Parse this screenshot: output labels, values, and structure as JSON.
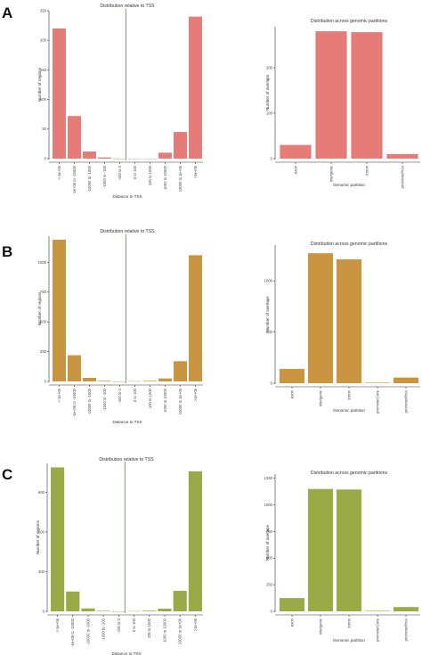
{
  "panels": [
    {
      "letter": "A",
      "color": "#E57C78",
      "tss": {
        "title": "Distribution relative to TSS",
        "xlabel": "Distance to TSS",
        "ylabel": "Number of regions",
        "yticks": [
          0,
          50,
          100,
          150,
          200,
          250
        ],
        "ylim": [
          0,
          250
        ],
        "categories": [
          "<-1e+06",
          "-1e+06 to -10000",
          "-10000 to -1000",
          "-1000 to -100",
          "-100 to 0",
          "0 to 100",
          "100 to 1000",
          "1000 to 10000",
          "10000 to 1e+06",
          ">1e+06"
        ],
        "values": [
          220,
          72,
          12,
          2,
          0,
          0,
          0,
          10,
          45,
          240
        ]
      },
      "partition": {
        "title": "Distribution across genomic partitions",
        "xlabel": "Genomic partition",
        "ylabel": "Number of overlaps",
        "yticks": [
          0,
          100,
          200
        ],
        "ylim": [
          0,
          290
        ],
        "categories": [
          "exon",
          "intergenic",
          "intron",
          "promoterProx"
        ],
        "values": [
          30,
          280,
          278,
          10
        ]
      }
    },
    {
      "letter": "B",
      "color": "#C99540",
      "tss": {
        "title": "Distribution relative to TSS",
        "xlabel": "Distance to TSS",
        "ylabel": "Number of regions",
        "yticks": [
          0,
          250,
          500,
          750,
          1000
        ],
        "ylim": [
          0,
          1220
        ],
        "categories": [
          "<-1e+06",
          "-1e+06 to -10000",
          "-10000 to -1000",
          "-1000 to -100",
          "-100 to 0",
          "0 to 100",
          "100 to 1000",
          "1000 to 10000",
          "10000 to 1e+06",
          ">1e+06"
        ],
        "values": [
          1190,
          220,
          30,
          5,
          0,
          2,
          5,
          25,
          170,
          1060
        ]
      },
      "partition": {
        "title": "Distribution across genomic partitions",
        "xlabel": "Genomic partition",
        "ylabel": "Number of overlaps",
        "yticks": [
          0,
          500,
          1000
        ],
        "ylim": [
          0,
          1350
        ],
        "categories": [
          "exon",
          "intergenic",
          "intron",
          "promoterCore",
          "promoterProx"
        ],
        "values": [
          140,
          1270,
          1210,
          5,
          55
        ]
      }
    },
    {
      "letter": "C",
      "color": "#9AAA47",
      "tss": {
        "title": "Distribution relative to TSS",
        "xlabel": "Distance to TSS",
        "ylabel": "Number of regions",
        "yticks": [
          0,
          300,
          600,
          900
        ],
        "ylim": [
          0,
          1120
        ],
        "categories": [
          "<-1e+06",
          "-1e+06 to -10000",
          "-10000 to -1000",
          "-1000 to -100",
          "-100 to 0",
          "0 to 100",
          "100 to 1000",
          "1000 to 10000",
          "10000 to 1e+06",
          ">1e+06"
        ],
        "values": [
          1090,
          150,
          22,
          4,
          0,
          2,
          5,
          20,
          155,
          1060
        ]
      },
      "partition": {
        "title": "Distribution across genomic partitions",
        "xlabel": "Genomic partition",
        "ylabel": "Number of overlaps",
        "yticks": [
          0,
          250,
          500,
          750,
          1000,
          1250
        ],
        "ylim": [
          0,
          1290
        ],
        "categories": [
          "exon",
          "intergenic",
          "intron",
          "promoterCore",
          "promoterProx"
        ],
        "values": [
          125,
          1150,
          1145,
          5,
          40
        ]
      }
    }
  ],
  "chart_data": [
    {
      "type": "bar",
      "title": "Distribution relative to TSS",
      "xlabel": "Distance to TSS",
      "ylabel": "Number of regions",
      "categories": [
        "<-1e+06",
        "-1e+06 to -10000",
        "-10000 to -1000",
        "-1000 to -100",
        "-100 to 0",
        "0 to 100",
        "100 to 1000",
        "1000 to 10000",
        "10000 to 1e+06",
        ">1e+06"
      ],
      "values": [
        220,
        72,
        12,
        2,
        0,
        0,
        0,
        10,
        45,
        240
      ],
      "ylim": [
        0,
        250
      ]
    },
    {
      "type": "bar",
      "title": "Distribution across genomic partitions",
      "xlabel": "Genomic partition",
      "ylabel": "Number of overlaps",
      "categories": [
        "exon",
        "intergenic",
        "intron",
        "promoterProx"
      ],
      "values": [
        30,
        280,
        278,
        10
      ],
      "ylim": [
        0,
        290
      ]
    },
    {
      "type": "bar",
      "title": "Distribution relative to TSS",
      "xlabel": "Distance to TSS",
      "ylabel": "Number of regions",
      "categories": [
        "<-1e+06",
        "-1e+06 to -10000",
        "-10000 to -1000",
        "-1000 to -100",
        "-100 to 0",
        "0 to 100",
        "100 to 1000",
        "1000 to 10000",
        "10000 to 1e+06",
        ">1e+06"
      ],
      "values": [
        1190,
        220,
        30,
        5,
        0,
        2,
        5,
        25,
        170,
        1060
      ],
      "ylim": [
        0,
        1220
      ]
    },
    {
      "type": "bar",
      "title": "Distribution across genomic partitions",
      "xlabel": "Genomic partition",
      "ylabel": "Number of overlaps",
      "categories": [
        "exon",
        "intergenic",
        "intron",
        "promoterCore",
        "promoterProx"
      ],
      "values": [
        140,
        1270,
        1210,
        5,
        55
      ],
      "ylim": [
        0,
        1350
      ]
    },
    {
      "type": "bar",
      "title": "Distribution relative to TSS",
      "xlabel": "Distance to TSS",
      "ylabel": "Number of regions",
      "categories": [
        "<-1e+06",
        "-1e+06 to -10000",
        "-10000 to -1000",
        "-1000 to -100",
        "-100 to 0",
        "0 to 100",
        "100 to 1000",
        "1000 to 10000",
        "10000 to 1e+06",
        ">1e+06"
      ],
      "values": [
        1090,
        150,
        22,
        4,
        0,
        2,
        5,
        20,
        155,
        1060
      ],
      "ylim": [
        0,
        1120
      ]
    },
    {
      "type": "bar",
      "title": "Distribution across genomic partitions",
      "xlabel": "Genomic partition",
      "ylabel": "Number of overlaps",
      "categories": [
        "exon",
        "intergenic",
        "intron",
        "promoterCore",
        "promoterProx"
      ],
      "values": [
        125,
        1150,
        1145,
        5,
        40
      ],
      "ylim": [
        0,
        1290
      ]
    }
  ]
}
